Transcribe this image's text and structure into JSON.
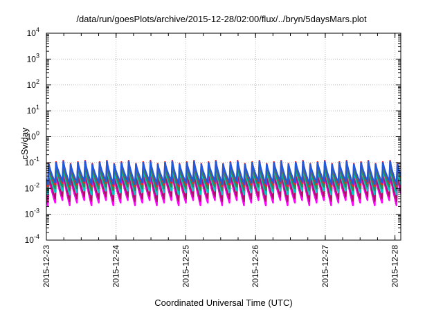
{
  "title": "/data/run/goesPlots/archive/2015-12-28/02:00/flux/../bryn/5daysMars.plot",
  "chart_data": {
    "type": "line",
    "title": "/data/run/goesPlots/archive/2015-12-28/02:00/flux/../bryn/5daysMars.plot",
    "xlabel": "Coordinated Universal Time (UTC)",
    "ylabel": "cSv/day",
    "x_ticks": [
      "2015-12-23",
      "2015-12-24",
      "2015-12-25",
      "2015-12-26",
      "2015-12-27",
      "2015-12-28"
    ],
    "xlim": [
      "2015-12-23T00:00",
      "2015-12-28T02:00"
    ],
    "y_scale": "log",
    "ylim": [
      0.0001,
      10000
    ],
    "y_ticks": [
      {
        "base": "10",
        "exp": "-4"
      },
      {
        "base": "10",
        "exp": "-3"
      },
      {
        "base": "10",
        "exp": "-2"
      },
      {
        "base": "10",
        "exp": "-1"
      },
      {
        "base": "10",
        "exp": "0"
      },
      {
        "base": "10",
        "exp": "1"
      },
      {
        "base": "10",
        "exp": "2"
      },
      {
        "base": "10",
        "exp": "3"
      },
      {
        "base": "10",
        "exp": "4"
      }
    ],
    "grid": true,
    "pattern": {
      "cycle_hours": 2.5,
      "first_peak": "2015-12-23T00:50",
      "phases": 3
    },
    "series": [
      {
        "color": "#ff00ff",
        "peaks": [
          0.028,
          0.034,
          0.04
        ],
        "troughs": [
          0.0022,
          0.0028,
          0.0035
        ]
      },
      {
        "color": "#b0106a",
        "peaks": [
          0.033,
          0.04,
          0.047
        ],
        "troughs": [
          0.0032,
          0.004,
          0.0048
        ]
      },
      {
        "color": "#00c8c8",
        "peaks": [
          0.05,
          0.058,
          0.066
        ],
        "troughs": [
          0.0058,
          0.007,
          0.0082
        ]
      },
      {
        "color": "#2e8b57",
        "peaks": [
          0.062,
          0.07,
          0.08
        ],
        "troughs": [
          0.0085,
          0.01,
          0.0115
        ]
      },
      {
        "color": "#ff2020",
        "peaks": [
          0.09,
          0.105,
          0.118
        ],
        "troughs": [
          0.012,
          0.014,
          0.016
        ]
      },
      {
        "color": "#1e5adc",
        "peaks": [
          0.085,
          0.098,
          0.11
        ],
        "troughs": [
          0.0145,
          0.0165,
          0.0185
        ]
      }
    ]
  }
}
